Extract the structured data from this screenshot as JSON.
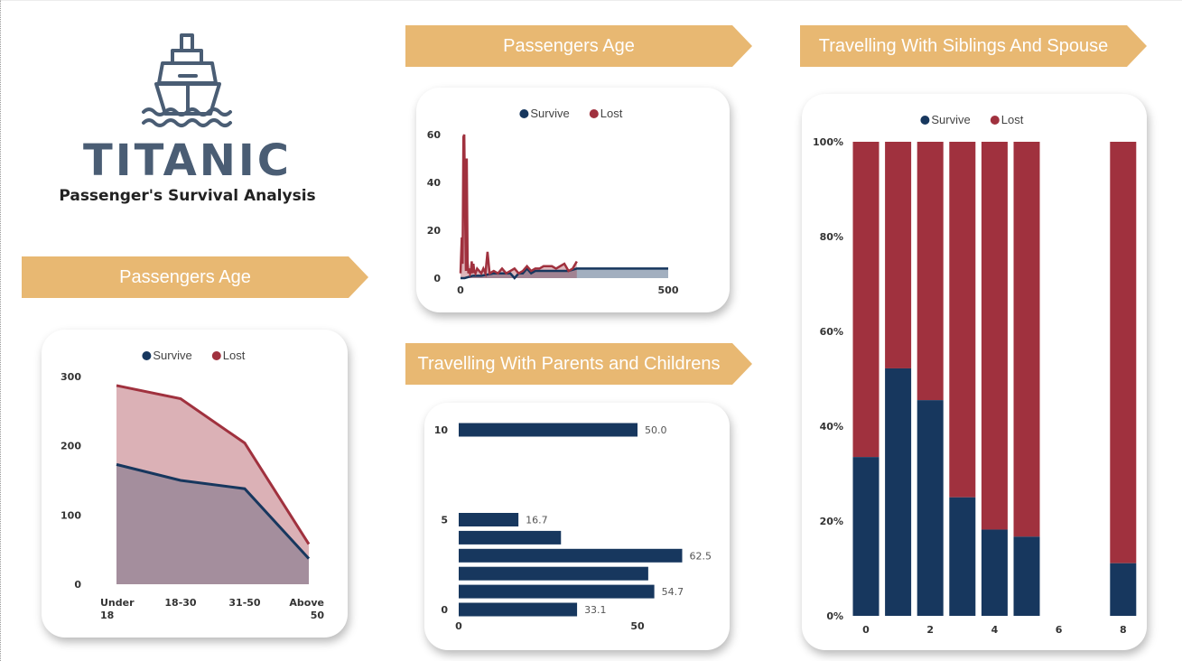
{
  "colors": {
    "survive": "#17375e",
    "lost": "#a0313e",
    "banner": "#e8b872"
  },
  "legend": {
    "survive": "Survive",
    "lost": "Lost"
  },
  "logo": {
    "icon": "ship-icon",
    "title": "TITANIC",
    "subtitle": "Passenger's Survival Analysis"
  },
  "banners": {
    "age_left": "Passengers Age",
    "age_top": "Passengers Age",
    "parch": "Travelling With Parents and Childrens",
    "sibsp": "Travelling With Siblings And Spouse"
  },
  "chart_data": [
    {
      "id": "age_group",
      "type": "area",
      "categories": [
        [
          "Under",
          "18"
        ],
        [
          "18-30"
        ],
        [
          "31-50"
        ],
        [
          "Above",
          "50"
        ]
      ],
      "series": [
        {
          "name": "Survive",
          "values": [
            173,
            150,
            138,
            37
          ]
        },
        {
          "name": "Lost",
          "values": [
            287,
            268,
            204,
            58
          ]
        }
      ],
      "ylim": [
        0,
        300
      ],
      "yticks": [
        "0",
        "100",
        "200",
        "300"
      ],
      "legend": "top"
    },
    {
      "id": "age_detail",
      "type": "line",
      "xlim": [
        0,
        500
      ],
      "ylim": [
        0,
        60
      ],
      "xticks": [
        "0",
        "500"
      ],
      "yticks": [
        "0",
        "20",
        "40",
        "60"
      ],
      "series": [
        {
          "name": "Lost",
          "x": [
            0,
            3,
            5,
            7,
            9,
            11,
            13,
            15,
            17,
            19,
            21,
            23,
            25,
            27,
            29,
            31,
            33,
            36,
            40,
            45,
            50,
            55,
            60,
            65,
            70,
            80,
            90,
            100,
            110,
            120,
            130,
            140,
            150,
            160,
            170,
            180,
            190,
            200,
            210,
            220,
            230,
            240,
            250,
            260,
            270,
            280
          ],
          "y": [
            2,
            17,
            6,
            59,
            60,
            28,
            3,
            50,
            7,
            2,
            4,
            2,
            3,
            7,
            2,
            6,
            3,
            2,
            4,
            3,
            2,
            4,
            2,
            11,
            2,
            3,
            2,
            4,
            2,
            3,
            4,
            2,
            3,
            5,
            3,
            4,
            4,
            5,
            5,
            5,
            4,
            5,
            6,
            3,
            4,
            7
          ]
        },
        {
          "name": "Survive",
          "x": [
            0,
            10,
            30,
            50,
            80,
            100,
            120,
            130,
            140,
            150,
            160,
            170,
            180,
            200,
            220,
            240,
            260,
            280,
            300,
            320,
            350,
            400,
            450,
            500
          ],
          "y": [
            0,
            0,
            1,
            1,
            2,
            2,
            2,
            0,
            2,
            2,
            4,
            2,
            3,
            3,
            3,
            3,
            3,
            4,
            4,
            4,
            4,
            4,
            4,
            4
          ]
        }
      ],
      "legend": "top"
    },
    {
      "id": "parch",
      "type": "bar",
      "orientation": "horizontal",
      "categories": [
        0,
        1,
        2,
        3,
        4,
        5,
        10
      ],
      "values": [
        33.1,
        54.7,
        53.0,
        62.5,
        28.6,
        16.7,
        50.0
      ],
      "data_labels": [
        "33.1",
        "54.7",
        "",
        "62.5",
        "",
        "16.7",
        "50.0"
      ],
      "xlim": [
        0,
        65
      ],
      "xticks": [
        "0",
        "50"
      ],
      "ylim": [
        0,
        10
      ],
      "yticks": [
        "0",
        "5",
        "10"
      ]
    },
    {
      "id": "sibsp",
      "type": "bar",
      "stacked": "100%",
      "categories": [
        0,
        1,
        2,
        3,
        4,
        5,
        8
      ],
      "series": [
        {
          "name": "Survive",
          "values": [
            33.5,
            52.2,
            45.5,
            25.0,
            18.2,
            16.7,
            11.1
          ]
        },
        {
          "name": "Lost",
          "values": [
            66.5,
            47.8,
            54.5,
            75.0,
            81.8,
            83.3,
            88.9
          ]
        }
      ],
      "xlim": [
        -0.5,
        8.5
      ],
      "xticks": [
        "0",
        "2",
        "4",
        "6",
        "8"
      ],
      "yticks": [
        "0%",
        "20%",
        "40%",
        "60%",
        "80%",
        "100%"
      ],
      "legend": "top"
    }
  ]
}
